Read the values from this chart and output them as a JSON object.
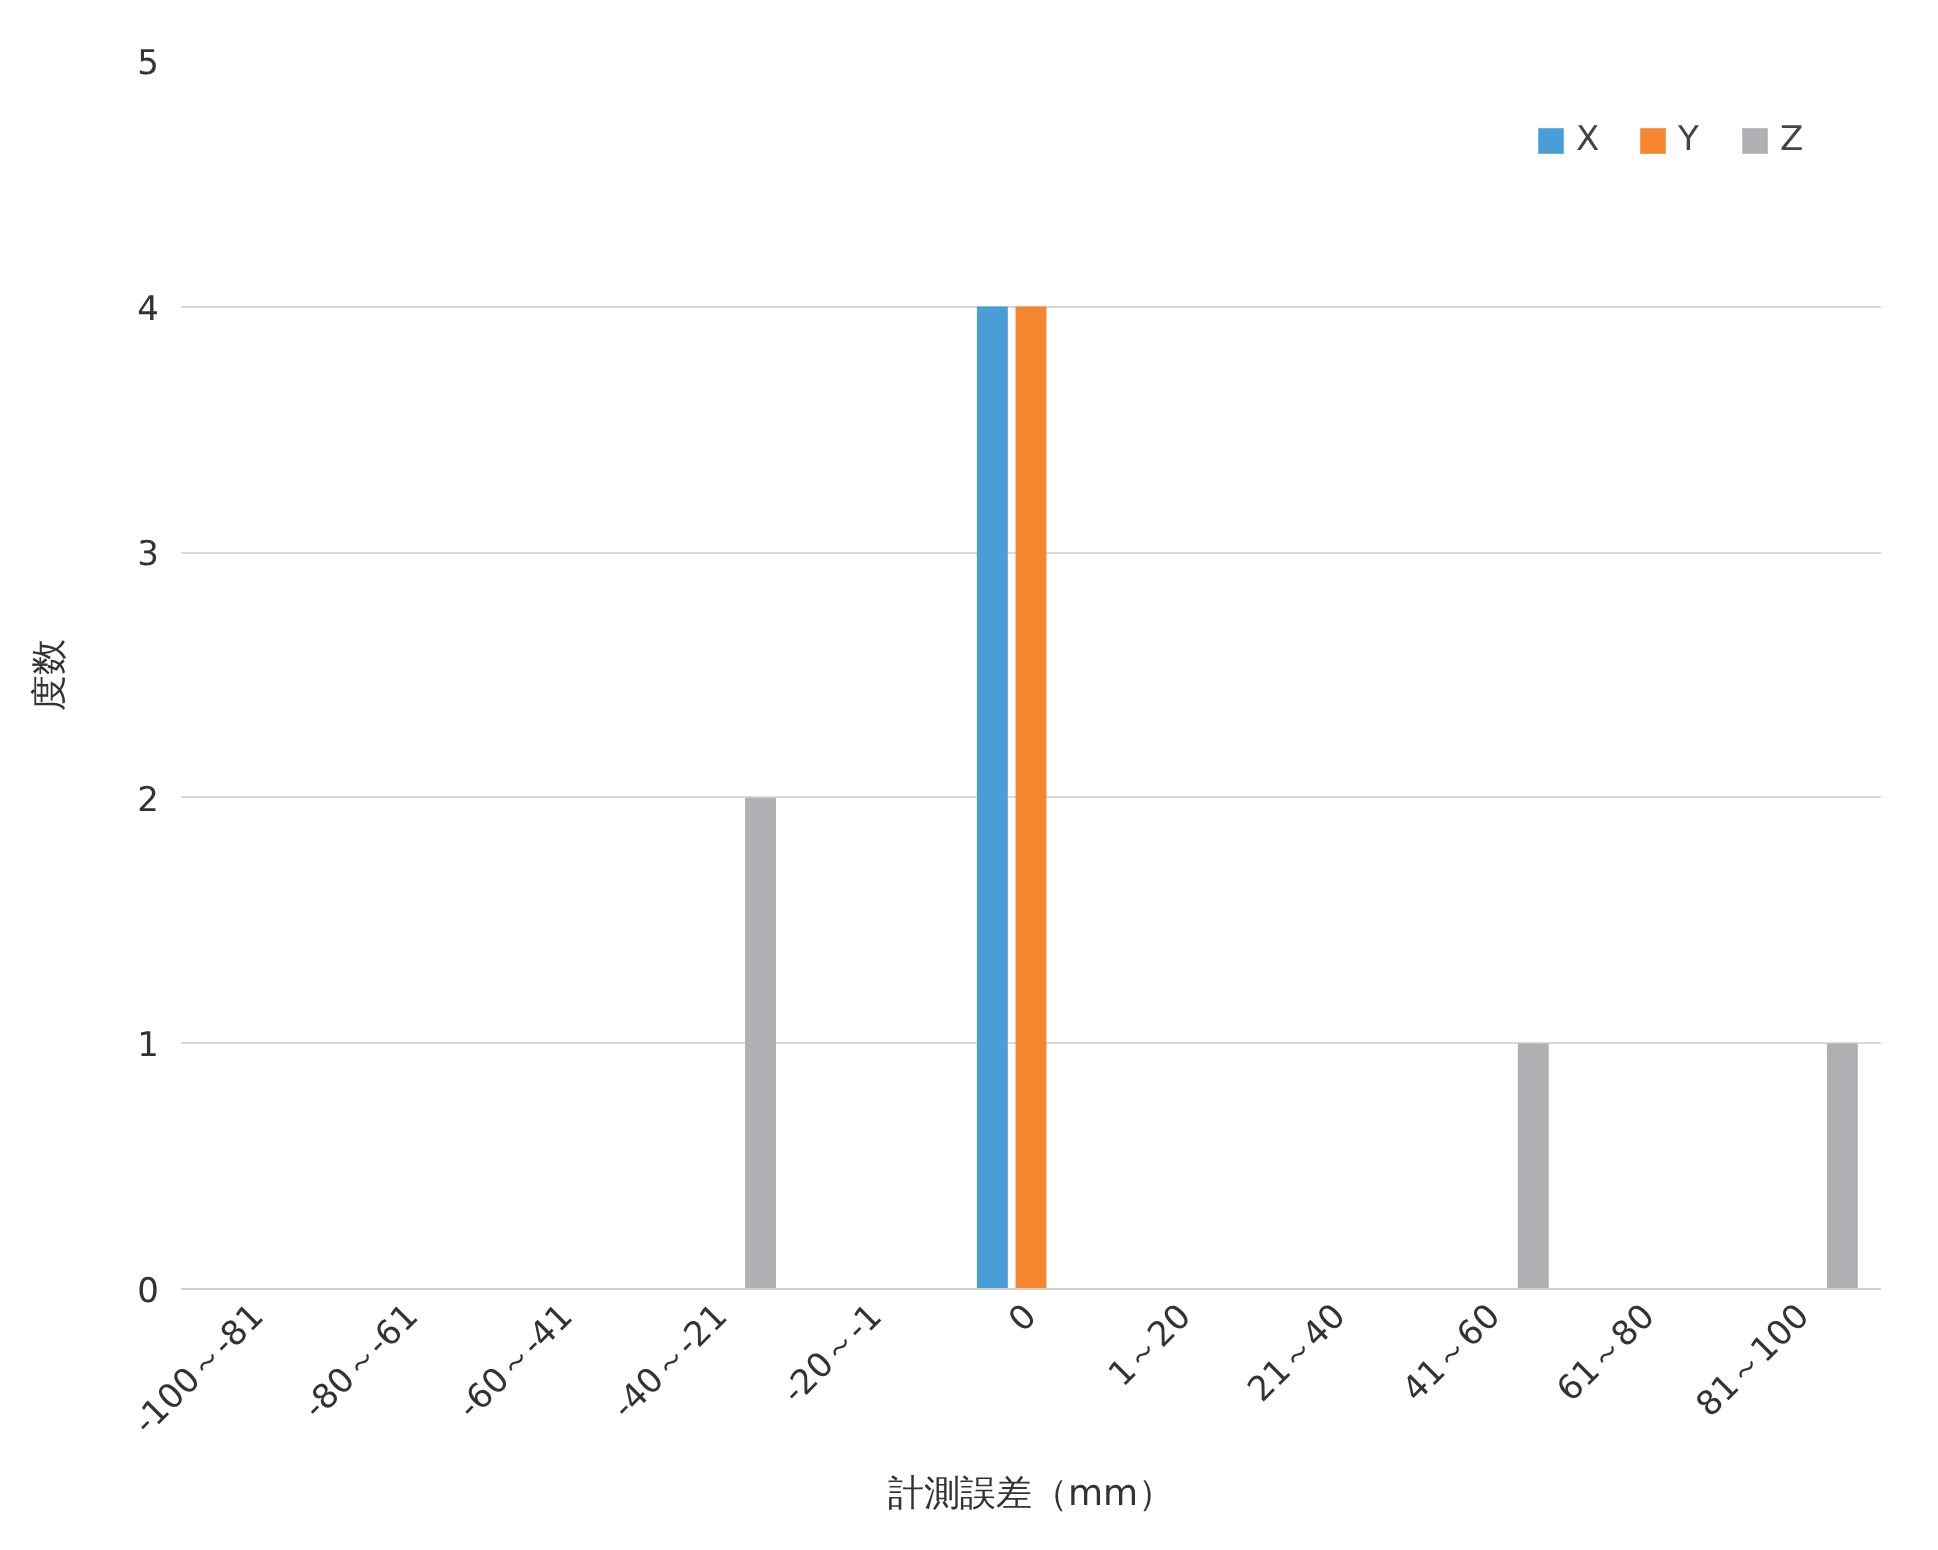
{
  "chart_data": {
    "type": "bar",
    "xlabel": "計測誤差（mm）",
    "ylabel": "度数",
    "categories": [
      "-100～-81",
      "-80～-61",
      "-60～-41",
      "-40～-21",
      "-20～-1",
      "0",
      "1～20",
      "21～40",
      "41～60",
      "61～80",
      "81～100"
    ],
    "series": [
      {
        "name": "X",
        "color": "#4a9ed8",
        "values": [
          0,
          0,
          0,
          0,
          0,
          4,
          0,
          0,
          0,
          0,
          0
        ]
      },
      {
        "name": "Y",
        "color": "#f5862d",
        "values": [
          0,
          0,
          0,
          0,
          0,
          4,
          0,
          0,
          0,
          0,
          0
        ]
      },
      {
        "name": "Z",
        "color": "#b0b0b4",
        "values": [
          0,
          0,
          0,
          2,
          0,
          0,
          0,
          0,
          1,
          0,
          1
        ]
      }
    ],
    "ylim": [
      0,
      5
    ],
    "yticks": [
      0,
      1,
      2,
      3,
      4,
      5
    ],
    "grid": "y",
    "legend": "top right"
  }
}
